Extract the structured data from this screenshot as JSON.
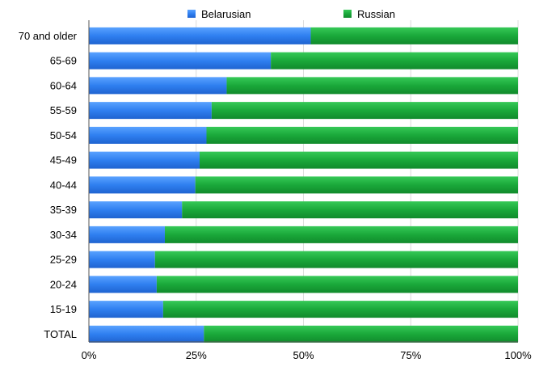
{
  "chart_data": {
    "type": "bar",
    "orientation": "horizontal",
    "stacked": true,
    "percent_stacked": true,
    "categories": [
      "70 and older",
      "65-69",
      "60-64",
      "55-59",
      "50-54",
      "45-49",
      "40-44",
      "35-39",
      "30-34",
      "25-29",
      "20-24",
      "15-19",
      "TOTAL"
    ],
    "series": [
      {
        "name": "Belarusian",
        "color": "#2f7ff0",
        "values": [
          51.7,
          42.4,
          32.1,
          28.6,
          27.4,
          25.8,
          24.8,
          21.7,
          17.7,
          15.4,
          15.8,
          17.3,
          26.8
        ]
      },
      {
        "name": "Russian",
        "color": "#1aa83a",
        "values": [
          48.3,
          57.6,
          67.9,
          71.4,
          72.6,
          74.2,
          75.2,
          78.3,
          82.3,
          84.6,
          84.2,
          82.7,
          73.2
        ]
      }
    ],
    "x_ticks": [
      "0%",
      "25%",
      "50%",
      "75%",
      "100%"
    ],
    "xlim": [
      0,
      100
    ],
    "legend_position": "top",
    "grid": true
  }
}
